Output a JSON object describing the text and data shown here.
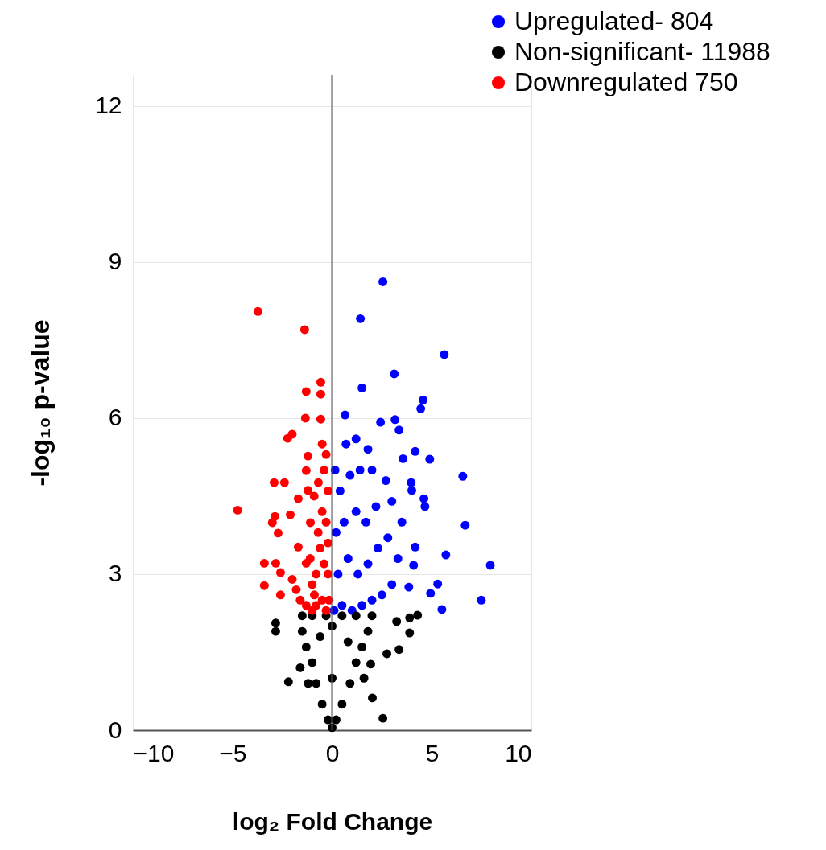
{
  "chart_data": {
    "type": "scatter",
    "xlabel": "log₂ Fold Change",
    "ylabel": "-log₁₀ p-value",
    "xlim": [
      -10,
      10
    ],
    "xticks": [
      -10,
      -5,
      0,
      5,
      10
    ],
    "ylim": [
      0,
      12.6
    ],
    "yticks": [
      0,
      3,
      6,
      9,
      12
    ],
    "grid": true,
    "legend": "top right",
    "marker": "circle",
    "ref_lines": [
      {
        "axis": "x",
        "value": 0,
        "color": "#555555"
      }
    ],
    "series": [
      {
        "name": "Upregulated- 804",
        "color": "#0000ff",
        "x": [
          2.55,
          1.42,
          5.63,
          3.12,
          1.5,
          4.57,
          4.45,
          0.65,
          2.43,
          3.16,
          3.36,
          4.17,
          4.9,
          6.56,
          4.0,
          4.61,
          4.66,
          6.68,
          5.71,
          7.94,
          4.09,
          5.3,
          4.94,
          5.51,
          7.49,
          3.85,
          4.17,
          3.97,
          3.56,
          0.1,
          0.5,
          1.0,
          1.5,
          2.0,
          2.5,
          3.0,
          0.3,
          0.8,
          1.3,
          1.8,
          2.3,
          2.8,
          0.2,
          0.6,
          1.2,
          1.7,
          2.2,
          0.4,
          0.9,
          1.4,
          2.0,
          0.7,
          1.2,
          1.8,
          3.3,
          3.5,
          0.15,
          2.7,
          3.0
        ],
        "values": [
          8.62,
          7.91,
          7.22,
          6.85,
          6.58,
          6.35,
          6.18,
          6.06,
          5.92,
          5.97,
          5.77,
          5.36,
          5.21,
          4.88,
          4.61,
          4.45,
          4.3,
          3.94,
          3.37,
          3.17,
          3.17,
          2.81,
          2.63,
          2.32,
          2.5,
          2.75,
          3.52,
          4.76,
          5.22,
          2.3,
          2.4,
          2.3,
          2.4,
          2.5,
          2.6,
          2.8,
          3.0,
          3.3,
          3.0,
          3.2,
          3.5,
          3.7,
          3.8,
          4.0,
          4.2,
          4.0,
          4.3,
          4.6,
          4.9,
          5.0,
          5.0,
          5.5,
          5.6,
          5.4,
          3.3,
          4.0,
          5.0,
          4.8,
          4.4
        ]
      },
      {
        "name": "Non-significant- 11988",
        "color": "#000000",
        "x": [
          -2.83,
          -2.83,
          -2.19,
          3.89,
          4.29,
          3.24,
          3.89,
          3.36,
          2.75,
          2.55,
          2.02,
          1.94,
          0,
          -0.2,
          0.2,
          -0.5,
          0.5,
          -0.8,
          0.9,
          -1.0,
          1.2,
          -1.3,
          1.5,
          -1.5,
          1.8,
          -1.5,
          2.0,
          0,
          0,
          -0.6,
          0.8,
          -1.2,
          -1.6,
          1.6,
          -0.3,
          0.5,
          1.2,
          -1.0
        ],
        "values": [
          2.06,
          1.9,
          0.93,
          2.16,
          2.21,
          2.09,
          1.87,
          1.55,
          1.47,
          0.23,
          0.62,
          1.27,
          0.05,
          0.2,
          0.2,
          0.5,
          0.5,
          0.9,
          0.9,
          1.3,
          1.3,
          1.6,
          1.6,
          1.9,
          1.9,
          2.2,
          2.2,
          1,
          2,
          1.8,
          1.7,
          0.9,
          1.2,
          1.0,
          2.2,
          2.2,
          2.2,
          2.2
        ]
      },
      {
        "name": "Downregulated 750",
        "color": "#ff0000",
        "x": [
          -3.72,
          -1.38,
          -0.57,
          -0.57,
          -1.3,
          -1.34,
          -0.57,
          -4.74,
          -2.23,
          -2.0,
          -1.21,
          -1.3,
          -2.91,
          -2.39,
          -2.87,
          -3.0,
          -2.71,
          -3.4,
          -2.83,
          -3.4,
          -2.59,
          -2.59,
          -1.7,
          -2.1,
          -1.7,
          -1.21,
          -0.69,
          -1.3,
          -0.89,
          -1.09,
          -0.3,
          -0.5,
          -0.8,
          -1.0,
          -1.3,
          -0.2,
          -0.4,
          -0.6,
          -0.8,
          -1.0,
          -0.3,
          -0.5,
          -0.7,
          -0.2,
          -0.4,
          -0.3,
          -0.5,
          -1.1,
          -0.9,
          -0.15,
          -0.2,
          -1.6,
          -1.8,
          -2.0
        ],
        "values": [
          8.05,
          7.7,
          6.69,
          6.46,
          6.51,
          6.0,
          5.98,
          4.23,
          5.61,
          5.69,
          5.27,
          4.99,
          4.76,
          4.76,
          4.11,
          3.99,
          3.79,
          3.21,
          3.21,
          2.78,
          3.03,
          2.6,
          3.52,
          4.14,
          4.45,
          4.61,
          4.76,
          3.21,
          2.6,
          3.99,
          2.3,
          2.5,
          2.4,
          2.3,
          2.4,
          3.0,
          3.2,
          3.5,
          3.0,
          2.8,
          4.0,
          4.2,
          3.8,
          4.6,
          5.0,
          5.3,
          5.5,
          3.3,
          4.5,
          2.5,
          3.6,
          2.5,
          2.7,
          2.9
        ]
      }
    ]
  }
}
